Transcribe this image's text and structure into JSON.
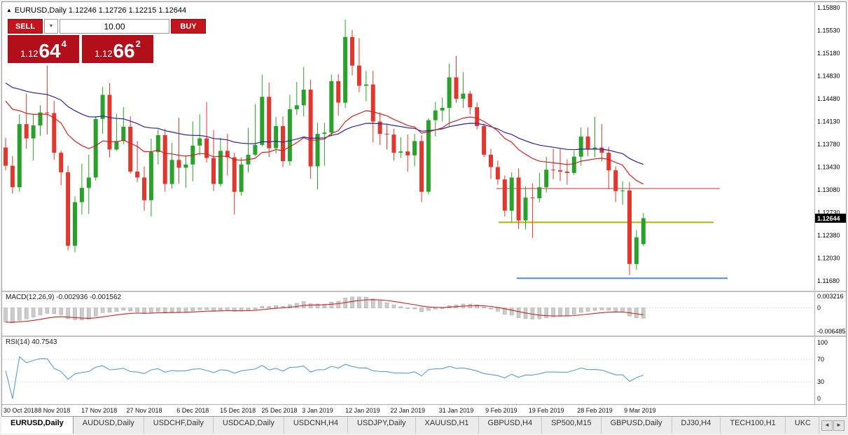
{
  "symbol_header": {
    "marker": "▲",
    "text": "EURUSD,Daily 1.12246 1.12726 1.12215 1.12644"
  },
  "trade_panel": {
    "sell_label": "SELL",
    "buy_label": "BUY",
    "amount": "10.00",
    "sell_price_small": "1.12",
    "sell_price_big": "64",
    "sell_price_sup": "4",
    "buy_price_small": "1.12",
    "buy_price_big": "66",
    "buy_price_sup": "2",
    "button_color": "#c4151e",
    "box_color": "#b30f1b"
  },
  "indicators": {
    "macd_label": "MACD(12,26,9)",
    "macd_values": "-0.002936 -0.001562",
    "rsi_label": "RSI(14)",
    "rsi_value": "40.7543"
  },
  "tabs": {
    "items": [
      "EURUSD,Daily",
      "AUDUSD,Daily",
      "USDCHF,Daily",
      "USDCAD,Daily",
      "USDCNH,H4",
      "USDJPY,Daily",
      "XAUUSD,H1",
      "GBPUSD,H4",
      "SP500,M15",
      "GBPUSD,Daily",
      "DJ30,H4",
      "TECH100,H1",
      "UKC"
    ],
    "active_index": 0,
    "scroll_left": "◄",
    "scroll_right": "►"
  },
  "chart_data": {
    "type": "candlestick",
    "symbol": "EURUSD",
    "timeframe": "Daily",
    "price_axis": {
      "max": 1.1588,
      "min": 1.1168,
      "labels": [
        "1.15880",
        "1.15530",
        "1.15180",
        "1.14830",
        "1.14480",
        "1.14130",
        "1.13780",
        "1.13430",
        "1.13080",
        "1.12730",
        "1.12380",
        "1.12030",
        "1.11680"
      ]
    },
    "current_price": 1.12644,
    "current_price_text": "1.12644",
    "colors": {
      "up": "#2aa12a",
      "down": "#e0382e",
      "ma_fast": "#cc2222",
      "ma_slow": "#24249e",
      "macd_hist": "#cccccc",
      "macd_signal": "#cc2222",
      "rsi": "#5b9bd5",
      "badge": "#000000"
    },
    "ma_fast": {
      "period": 20,
      "seed": 1.1455
    },
    "ma_slow": {
      "period": 45,
      "seed": 1.1478
    },
    "hlines": [
      {
        "name": "resistance-line",
        "color": "#cc3333",
        "price": 1.131,
        "x1": 0.609,
        "x2": 0.884,
        "width": 1
      },
      {
        "name": "support-line",
        "color": "#b3b300",
        "price": 1.1258,
        "x1": 0.611,
        "x2": 0.876,
        "width": 2
      },
      {
        "name": "lower-support-line",
        "color": "#4a8fd3",
        "price": 1.1172,
        "x1": 0.634,
        "x2": 0.893,
        "width": 2
      }
    ],
    "macd": {
      "fast": 12,
      "slow": 26,
      "signal": 9,
      "seed_fast": 1.1375,
      "seed_slow": 1.1415,
      "max": 0.003216,
      "min": -0.006485,
      "axis": [
        {
          "t": "0.003216",
          "v": 0.003216
        },
        {
          "t": "0",
          "v": 0
        },
        {
          "t": "-0.006485",
          "v": -0.006485
        }
      ]
    },
    "rsi": {
      "period": 14,
      "levels": [
        70,
        30
      ],
      "axis": [
        {
          "t": "100",
          "v": 100
        },
        {
          "t": "70",
          "v": 70
        },
        {
          "t": "30",
          "v": 30
        },
        {
          "t": "0",
          "v": 0
        }
      ]
    },
    "x_labels": [
      {
        "text": "30 Oct 2018",
        "i": 0
      },
      {
        "text": "8 Nov 2018",
        "i": 7
      },
      {
        "text": "17 Nov 2018",
        "i": 13.5
      },
      {
        "text": "27 Nov 2018",
        "i": 20
      },
      {
        "text": "6 Dec 2018",
        "i": 27
      },
      {
        "text": "15 Dec 2018",
        "i": 33.5
      },
      {
        "text": "25 Dec 2018",
        "i": 39.5
      },
      {
        "text": "3 Jan 2019",
        "i": 45
      },
      {
        "text": "12 Jan 2019",
        "i": 51.5
      },
      {
        "text": "22 Jan 2019",
        "i": 58
      },
      {
        "text": "31 Jan 2019",
        "i": 65
      },
      {
        "text": "9 Feb 2019",
        "i": 71.5
      },
      {
        "text": "19 Feb 2019",
        "i": 78
      },
      {
        "text": "28 Feb 2019",
        "i": 85
      },
      {
        "text": "9 Mar 2019",
        "i": 91.5
      }
    ],
    "ohlc": [
      [
        1.1373,
        1.1388,
        1.1338,
        1.1345
      ],
      [
        1.1345,
        1.136,
        1.1302,
        1.1312
      ],
      [
        1.1312,
        1.1424,
        1.1305,
        1.1409
      ],
      [
        1.1409,
        1.1456,
        1.1371,
        1.1387
      ],
      [
        1.1387,
        1.1425,
        1.1353,
        1.1407
      ],
      [
        1.1407,
        1.1438,
        1.1391,
        1.1427
      ],
      [
        1.1427,
        1.1499,
        1.1393,
        1.1426
      ],
      [
        1.1426,
        1.1445,
        1.1354,
        1.1365
      ],
      [
        1.1365,
        1.1368,
        1.1315,
        1.1335
      ],
      [
        1.1335,
        1.1345,
        1.1215,
        1.1222
      ],
      [
        1.1222,
        1.1298,
        1.1212,
        1.1289
      ],
      [
        1.1289,
        1.1348,
        1.127,
        1.1311
      ],
      [
        1.1311,
        1.1362,
        1.1271,
        1.1327
      ],
      [
        1.1327,
        1.1421,
        1.1322,
        1.1417
      ],
      [
        1.1417,
        1.1466,
        1.1394,
        1.1454
      ],
      [
        1.1454,
        1.1472,
        1.1358,
        1.137
      ],
      [
        1.137,
        1.1425,
        1.1368,
        1.1383
      ],
      [
        1.1383,
        1.1435,
        1.1378,
        1.1405
      ],
      [
        1.1405,
        1.1421,
        1.1333,
        1.1336
      ],
      [
        1.1336,
        1.1383,
        1.132,
        1.1327
      ],
      [
        1.1327,
        1.1344,
        1.1276,
        1.1292
      ],
      [
        1.1292,
        1.1387,
        1.1267,
        1.1366
      ],
      [
        1.1366,
        1.1401,
        1.1347,
        1.1392
      ],
      [
        1.1392,
        1.1402,
        1.1305,
        1.1317
      ],
      [
        1.1317,
        1.138,
        1.131,
        1.1354
      ],
      [
        1.1354,
        1.1419,
        1.1318,
        1.1342
      ],
      [
        1.1342,
        1.136,
        1.1311,
        1.1347
      ],
      [
        1.1347,
        1.1413,
        1.1321,
        1.1376
      ],
      [
        1.1376,
        1.1424,
        1.1361,
        1.1387
      ],
      [
        1.1387,
        1.1443,
        1.135,
        1.1357
      ],
      [
        1.1357,
        1.14,
        1.1306,
        1.1317
      ],
      [
        1.1317,
        1.1388,
        1.1313,
        1.1368
      ],
      [
        1.1368,
        1.1394,
        1.133,
        1.1358
      ],
      [
        1.1358,
        1.1365,
        1.127,
        1.1305
      ],
      [
        1.1305,
        1.1358,
        1.1299,
        1.1347
      ],
      [
        1.1347,
        1.1403,
        1.1335,
        1.1362
      ],
      [
        1.1362,
        1.144,
        1.136,
        1.1377
      ],
      [
        1.1377,
        1.1485,
        1.1375,
        1.1451
      ],
      [
        1.1451,
        1.1473,
        1.1358,
        1.1372
      ],
      [
        1.1372,
        1.142,
        1.1364,
        1.1406
      ],
      [
        1.1406,
        1.1421,
        1.1343,
        1.1352
      ],
      [
        1.1352,
        1.1454,
        1.1345,
        1.1432
      ],
      [
        1.1432,
        1.1474,
        1.1423,
        1.1438
      ],
      [
        1.1438,
        1.1497,
        1.1421,
        1.1462
      ],
      [
        1.1462,
        1.1477,
        1.1325,
        1.1344
      ],
      [
        1.1344,
        1.1411,
        1.1309,
        1.1394
      ],
      [
        1.1394,
        1.1411,
        1.1345,
        1.1396
      ],
      [
        1.1396,
        1.1485,
        1.139,
        1.1475
      ],
      [
        1.1475,
        1.1486,
        1.1422,
        1.1442
      ],
      [
        1.1442,
        1.157,
        1.1434,
        1.1543
      ],
      [
        1.1543,
        1.1554,
        1.1484,
        1.1499
      ],
      [
        1.1499,
        1.1541,
        1.1458,
        1.1468
      ],
      [
        1.1468,
        1.1491,
        1.1444,
        1.147
      ],
      [
        1.147,
        1.1491,
        1.1381,
        1.1413
      ],
      [
        1.1413,
        1.1427,
        1.1377,
        1.1394
      ],
      [
        1.1394,
        1.141,
        1.137,
        1.1393
      ],
      [
        1.1393,
        1.1402,
        1.1353,
        1.1365
      ],
      [
        1.1365,
        1.1389,
        1.1357,
        1.1367
      ],
      [
        1.1367,
        1.1393,
        1.1336,
        1.1361
      ],
      [
        1.1361,
        1.1394,
        1.1344,
        1.1383
      ],
      [
        1.1383,
        1.1392,
        1.1289,
        1.1305
      ],
      [
        1.1305,
        1.1418,
        1.1301,
        1.1415
      ],
      [
        1.1415,
        1.1443,
        1.139,
        1.143
      ],
      [
        1.143,
        1.145,
        1.1413,
        1.1434
      ],
      [
        1.1434,
        1.1502,
        1.1405,
        1.1481
      ],
      [
        1.1481,
        1.1514,
        1.1442,
        1.1448
      ],
      [
        1.1448,
        1.1489,
        1.1434,
        1.1456
      ],
      [
        1.1456,
        1.146,
        1.1424,
        1.1435
      ],
      [
        1.1435,
        1.1442,
        1.1401,
        1.1406
      ],
      [
        1.1406,
        1.141,
        1.1358,
        1.1362
      ],
      [
        1.1362,
        1.1371,
        1.1325,
        1.1343
      ],
      [
        1.1343,
        1.1353,
        1.1316,
        1.1324
      ],
      [
        1.1324,
        1.133,
        1.1267,
        1.1276
      ],
      [
        1.1276,
        1.1335,
        1.1258,
        1.1327
      ],
      [
        1.1327,
        1.1341,
        1.1248,
        1.1261
      ],
      [
        1.1261,
        1.1313,
        1.1247,
        1.1296
      ],
      [
        1.1296,
        1.1318,
        1.1234,
        1.1295
      ],
      [
        1.1295,
        1.1334,
        1.1289,
        1.1312
      ],
      [
        1.1312,
        1.1359,
        1.1304,
        1.1339
      ],
      [
        1.1339,
        1.1371,
        1.1324,
        1.1338
      ],
      [
        1.1338,
        1.1371,
        1.1321,
        1.1336
      ],
      [
        1.1336,
        1.1355,
        1.1316,
        1.1334
      ],
      [
        1.1334,
        1.1368,
        1.1331,
        1.1359
      ],
      [
        1.1359,
        1.1404,
        1.1345,
        1.139
      ],
      [
        1.139,
        1.1404,
        1.136,
        1.137
      ],
      [
        1.137,
        1.142,
        1.1358,
        1.1373
      ],
      [
        1.1373,
        1.1409,
        1.1352,
        1.1365
      ],
      [
        1.1365,
        1.1374,
        1.1309,
        1.1338
      ],
      [
        1.1338,
        1.1344,
        1.1289,
        1.1306
      ],
      [
        1.1306,
        1.1321,
        1.1285,
        1.1307
      ],
      [
        1.1307,
        1.132,
        1.1177,
        1.1194
      ],
      [
        1.1194,
        1.1246,
        1.1185,
        1.1235
      ],
      [
        1.12246,
        1.12726,
        1.12215,
        1.12644
      ]
    ]
  }
}
